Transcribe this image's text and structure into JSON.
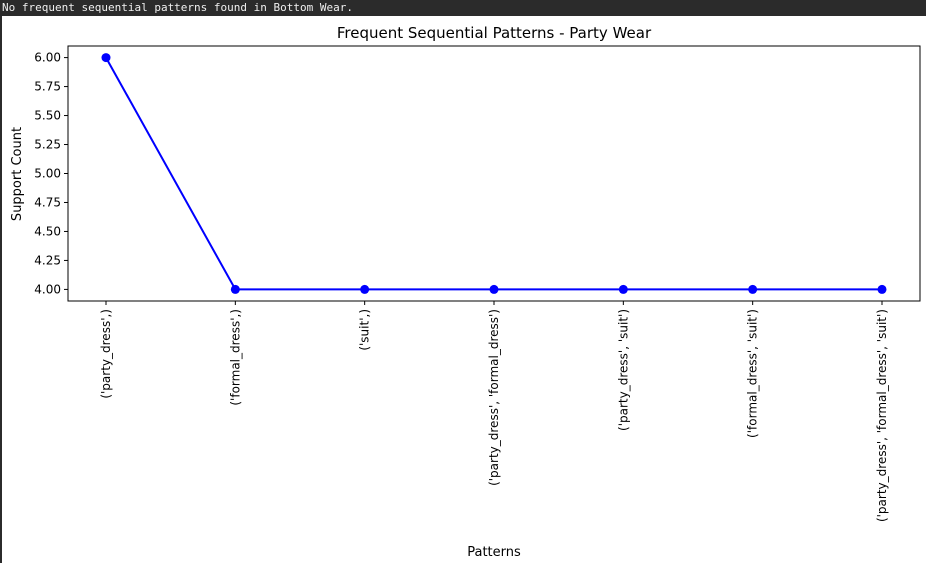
{
  "console": {
    "message": "No frequent sequential patterns found in Bottom Wear."
  },
  "chart_data": {
    "type": "line",
    "title": "Frequent Sequential Patterns - Party Wear",
    "xlabel": "Patterns",
    "ylabel": "Support Count",
    "categories": [
      "('party_dress',)",
      "('formal_dress',)",
      "('suit',)",
      "('party_dress', 'formal_dress')",
      "('party_dress', 'suit')",
      "('formal_dress', 'suit')",
      "('party_dress', 'formal_dress', 'suit')"
    ],
    "values": [
      6,
      4,
      4,
      4,
      4,
      4,
      4
    ],
    "ylim": [
      3.9,
      6.1
    ],
    "yticks": [
      "4.00",
      "4.25",
      "4.50",
      "4.75",
      "5.00",
      "5.25",
      "5.50",
      "5.75",
      "6.00"
    ],
    "marker": "circle",
    "line_color": "#0000ff",
    "grid": false,
    "legend": "none"
  }
}
